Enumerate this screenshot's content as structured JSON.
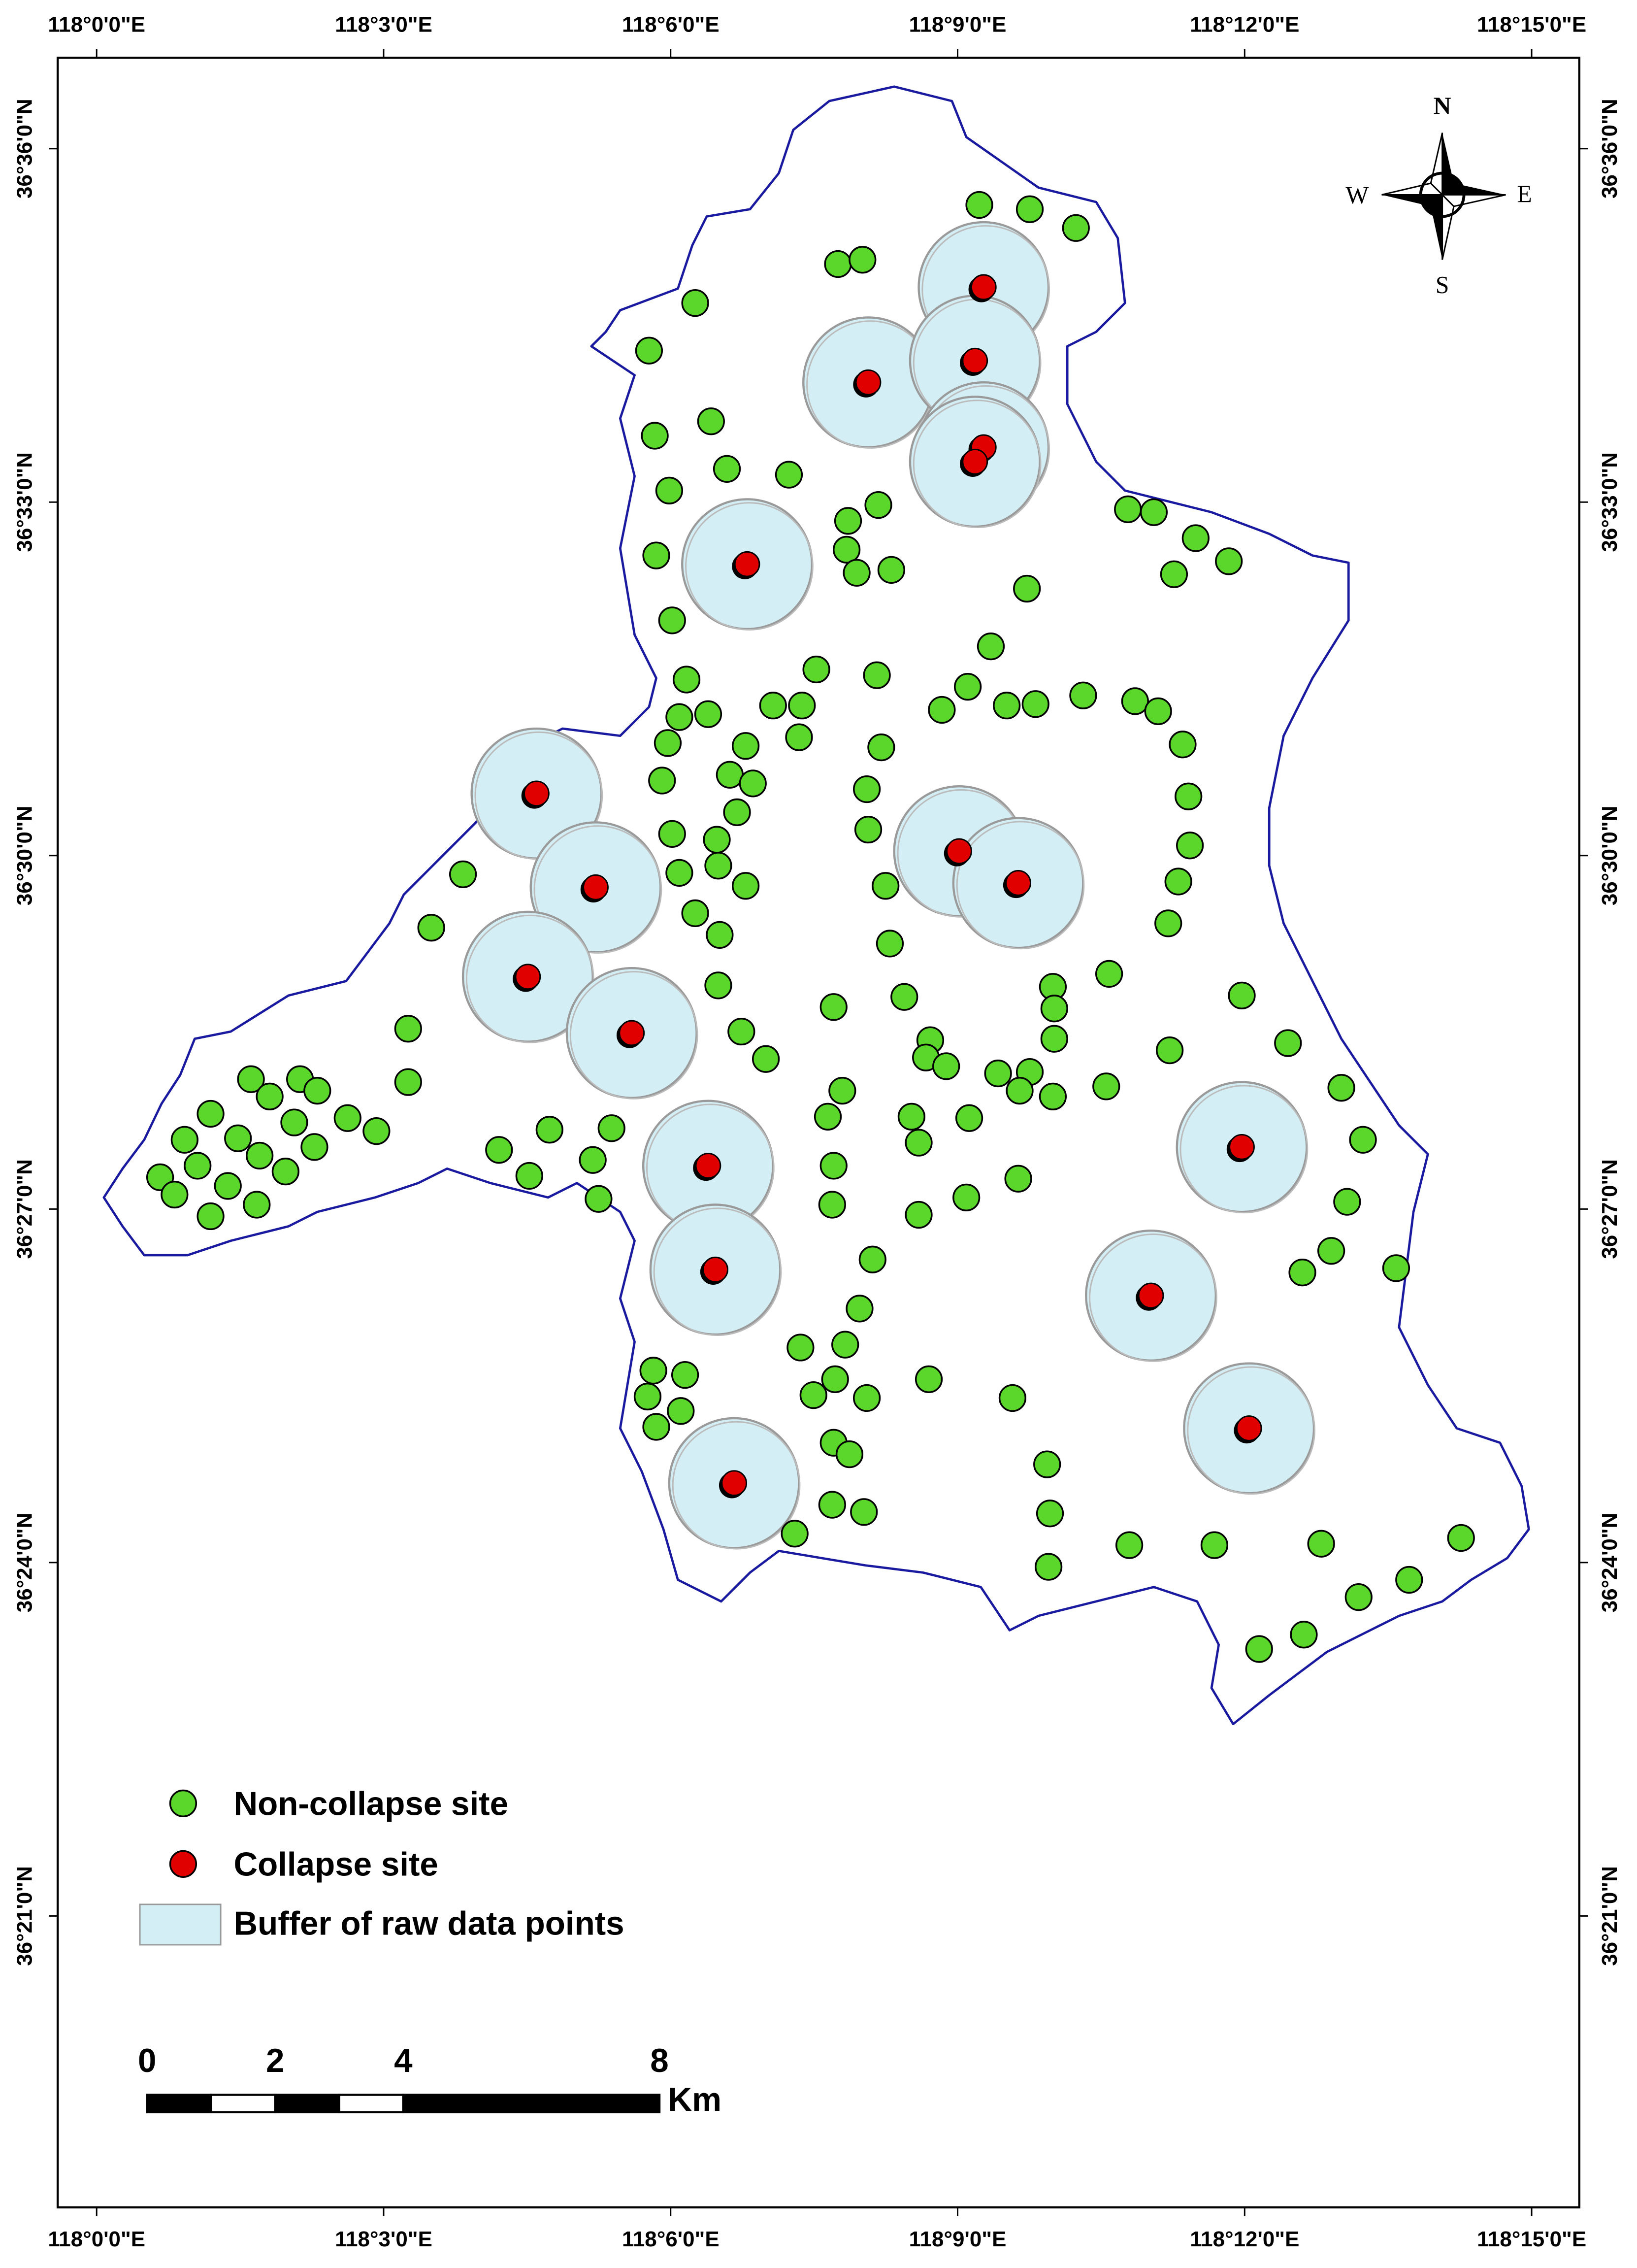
{
  "map": {
    "lon_ticks": [
      {
        "value": 118.0,
        "label": "118°0'0\"E"
      },
      {
        "value": 118.05,
        "label": "118°3'0\"E"
      },
      {
        "value": 118.1,
        "label": "118°6'0\"E"
      },
      {
        "value": 118.15,
        "label": "118°9'0\"E"
      },
      {
        "value": 118.2,
        "label": "118°12'0\"E"
      },
      {
        "value": 118.25,
        "label": "118°15'0\"E"
      }
    ],
    "lat_ticks": [
      {
        "value": 36.6,
        "label": "36°36'0\"N"
      },
      {
        "value": 36.55,
        "label": "36°33'0\"N"
      },
      {
        "value": 36.5,
        "label": "36°30'0\"N"
      },
      {
        "value": 36.45,
        "label": "36°27'0\"N"
      },
      {
        "value": 36.4,
        "label": "36°24'0\"N"
      },
      {
        "value": 36.35,
        "label": "36°21'0\"N"
      }
    ],
    "legend": [
      "Non-collapse site",
      "Collapse site",
      "Buffer of raw data points"
    ],
    "compass": {
      "n": "N",
      "s": "S",
      "e": "E",
      "w": "W"
    },
    "scale_bar": {
      "ticks": [
        0,
        2,
        4,
        8
      ],
      "unit": "Km"
    }
  }
}
